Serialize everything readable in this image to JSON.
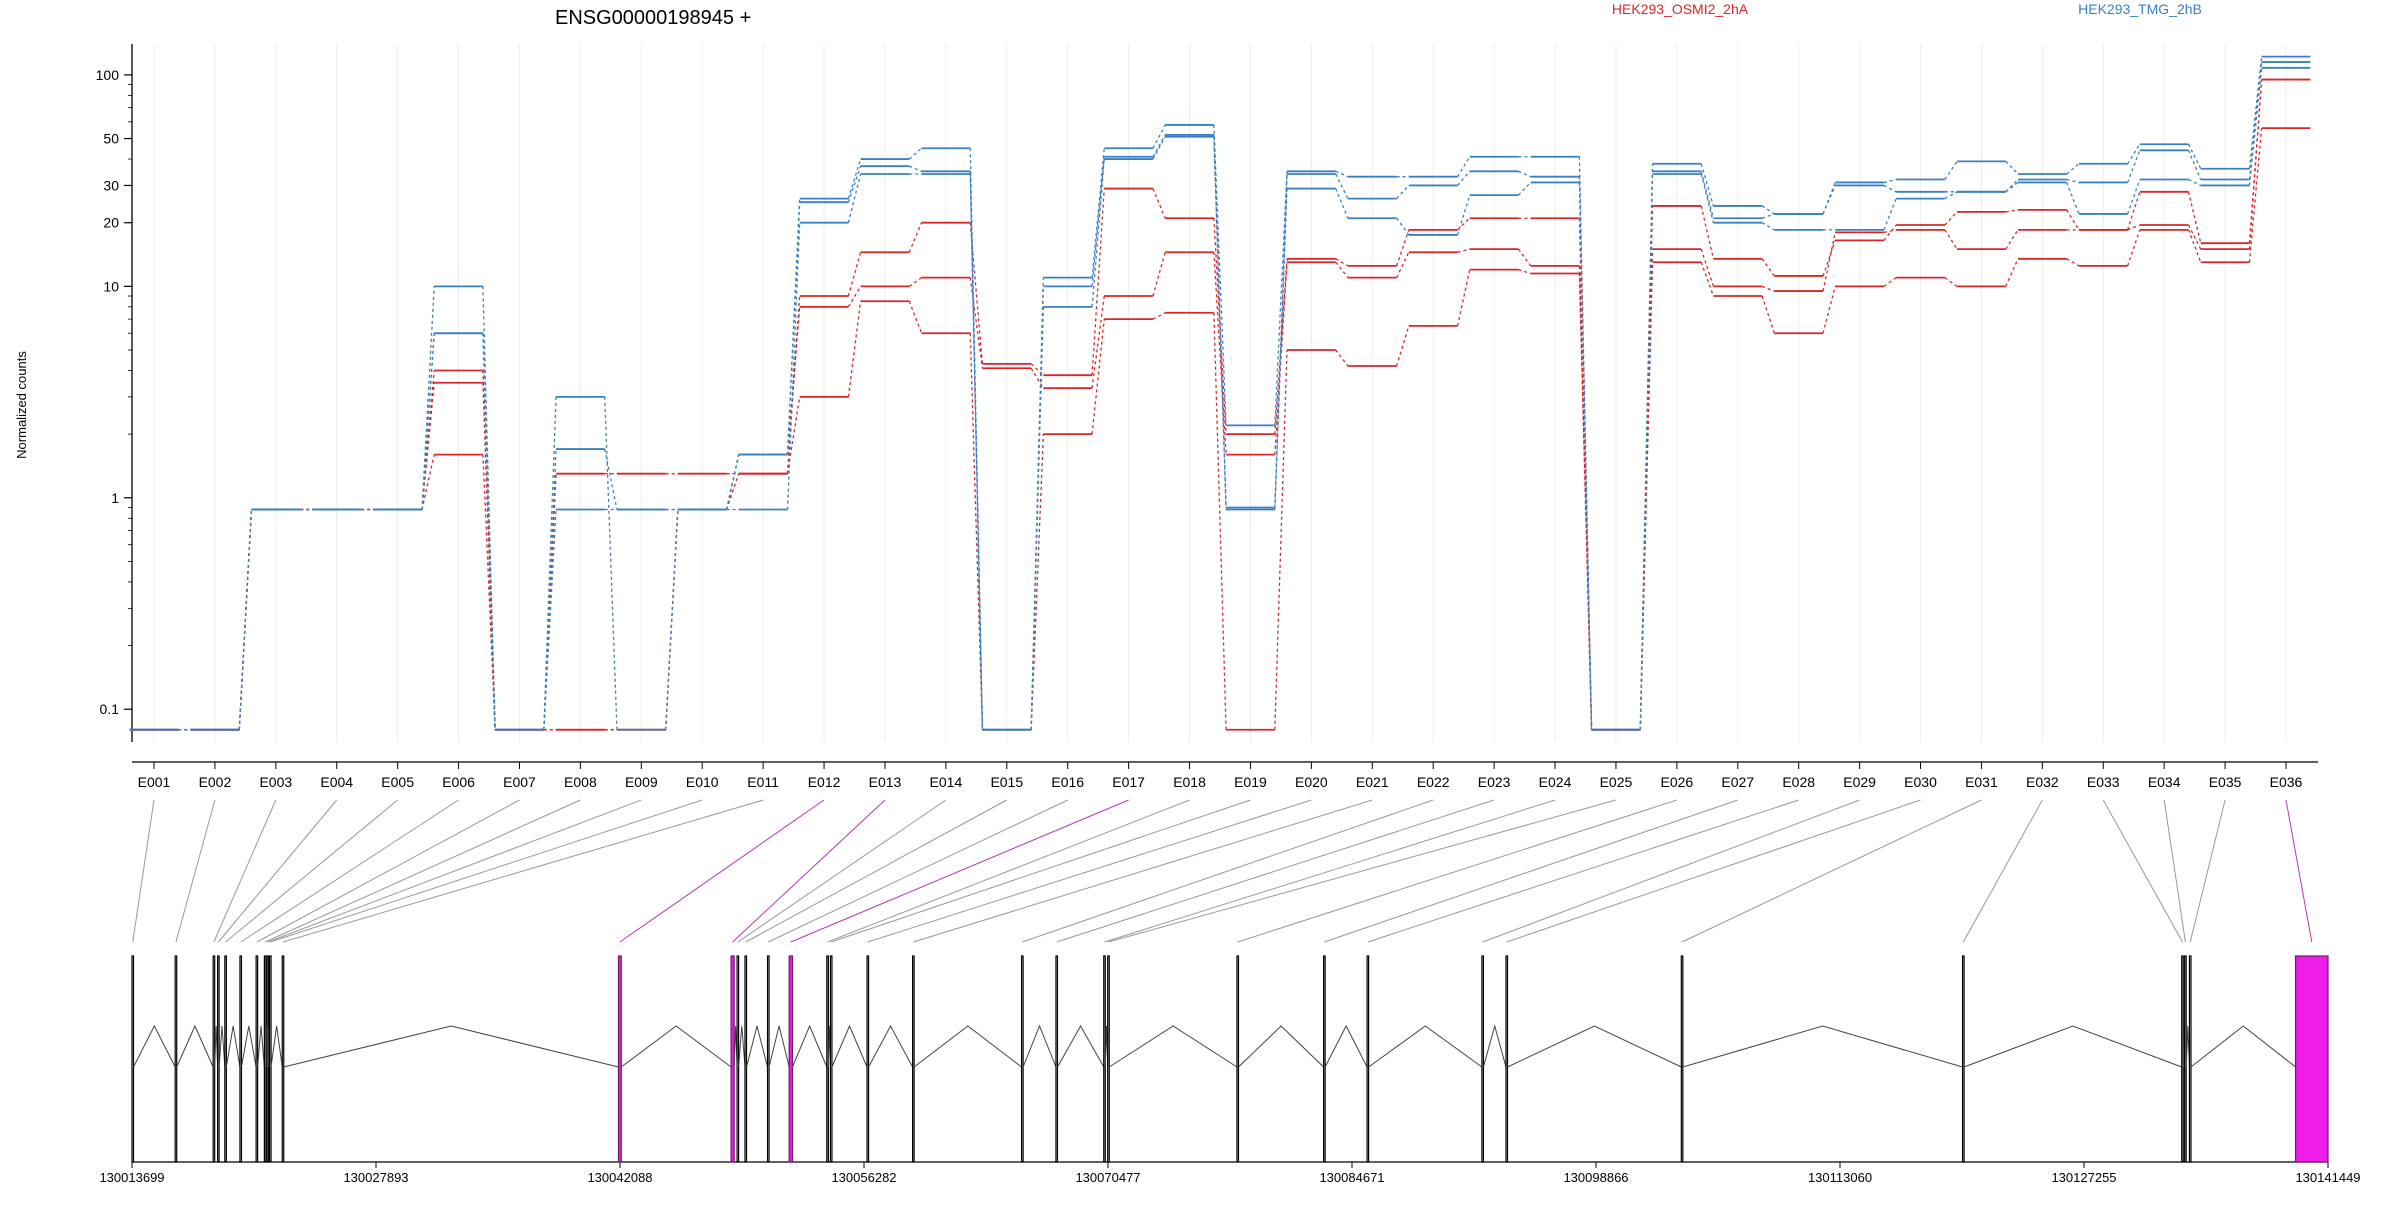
{
  "chart_data": {
    "type": "line",
    "title": "ENSG00000198945 +",
    "ylabel": "Normalized counts",
    "yscale": "log",
    "ylim": [
      0.07,
      140
    ],
    "yticks": [
      "0.1",
      "1",
      "10",
      "20",
      "30",
      "50",
      "100"
    ],
    "categories": [
      "E001",
      "E002",
      "E003",
      "E004",
      "E005",
      "E006",
      "E007",
      "E008",
      "E009",
      "E010",
      "E011",
      "E012",
      "E013",
      "E014",
      "E015",
      "E016",
      "E017",
      "E018",
      "E019",
      "E020",
      "E021",
      "E022",
      "E023",
      "E024",
      "E025",
      "E026",
      "E027",
      "E028",
      "E029",
      "E030",
      "E031",
      "E032",
      "E033",
      "E034",
      "E035",
      "E036"
    ],
    "conditions": [
      {
        "name": "HEK293_OSMI2_2hA",
        "color": "#d62728"
      },
      {
        "name": "HEK293_TMG_2hB",
        "color": "#3a7fc1"
      }
    ],
    "series": [
      {
        "condition": 0,
        "values": [
          0.08,
          0.08,
          0.88,
          0.88,
          0.88,
          4.0,
          0.08,
          1.3,
          1.3,
          1.3,
          1.3,
          9.0,
          14.5,
          20,
          4.3,
          3.8,
          29,
          21,
          2.0,
          13.5,
          12.5,
          18.5,
          21,
          21,
          0.08,
          24,
          13.5,
          11.2,
          16.5,
          19.5,
          22.5,
          23,
          18.5,
          28,
          16,
          95
        ]
      },
      {
        "condition": 0,
        "values": [
          0.08,
          0.08,
          0.88,
          0.88,
          0.88,
          3.5,
          0.08,
          0.08,
          0.08,
          0.88,
          1.6,
          8.0,
          10,
          11,
          4.1,
          3.3,
          9.0,
          14.5,
          1.6,
          13.0,
          11,
          14.5,
          15,
          12.5,
          0.08,
          15,
          10,
          9.5,
          18,
          18.5,
          15,
          18.5,
          18.5,
          19.5,
          15,
          95
        ]
      },
      {
        "condition": 0,
        "values": [
          0.08,
          0.08,
          0.88,
          0.88,
          0.88,
          1.6,
          0.08,
          0.08,
          0.08,
          0.88,
          1.3,
          3.0,
          8.5,
          6.0,
          0.08,
          2.0,
          7.0,
          7.5,
          0.08,
          5.0,
          4.2,
          6.5,
          12,
          11.5,
          0.08,
          13,
          9.0,
          6.0,
          10,
          11,
          10,
          13.5,
          12.5,
          18.5,
          13,
          56
        ]
      },
      {
        "condition": 1,
        "values": [
          0.08,
          0.08,
          0.88,
          0.88,
          0.88,
          10,
          0.08,
          3.0,
          0.08,
          0.88,
          1.6,
          26,
          40,
          45,
          0.08,
          11,
          45,
          58,
          2.2,
          35,
          33,
          33,
          41,
          41,
          0.08,
          38,
          24,
          22,
          31,
          32,
          39,
          34,
          38,
          47,
          36,
          122
        ]
      },
      {
        "condition": 1,
        "values": [
          0.08,
          0.08,
          0.88,
          0.88,
          0.88,
          6.0,
          0.08,
          1.7,
          0.88,
          0.88,
          1.6,
          25,
          37,
          35,
          0.08,
          10,
          41,
          52,
          0.9,
          34,
          26,
          30,
          35,
          33,
          0.08,
          35,
          21,
          22,
          30,
          28,
          28,
          32,
          31,
          44,
          32,
          115
        ]
      },
      {
        "condition": 1,
        "values": [
          0.08,
          0.08,
          0.88,
          0.88,
          0.88,
          6.0,
          0.08,
          0.88,
          0.88,
          0.88,
          0.88,
          20,
          34,
          34,
          0.08,
          8.0,
          40,
          51,
          0.88,
          29,
          21,
          17.5,
          27,
          31,
          0.08,
          34,
          20,
          18.5,
          18.5,
          26,
          28,
          31,
          22,
          32,
          30,
          108
        ]
      }
    ],
    "gene_model": {
      "xlim": [
        130013699,
        130141449
      ],
      "xticks": [
        "130013699",
        "130027893",
        "130042088",
        "130056282",
        "130070477",
        "130084671",
        "130098866",
        "130113060",
        "130127255",
        "130141449"
      ],
      "highlight_color": "#ee1ee8",
      "exons": [
        {
          "id": "E001",
          "start": 130013699,
          "end": 130013779
        },
        {
          "id": "E002",
          "start": 130016212,
          "end": 130016292
        },
        {
          "id": "E003",
          "start": 130018420,
          "end": 130018500
        },
        {
          "id": "E004",
          "start": 130018680,
          "end": 130018760
        },
        {
          "id": "E005",
          "start": 130019100,
          "end": 130019180
        },
        {
          "id": "E006",
          "start": 130019980,
          "end": 130020060
        },
        {
          "id": "E007",
          "start": 130020920,
          "end": 130021000
        },
        {
          "id": "E008",
          "start": 130021400,
          "end": 130021480
        },
        {
          "id": "E009",
          "start": 130021560,
          "end": 130021640
        },
        {
          "id": "E010",
          "start": 130021700,
          "end": 130021780
        },
        {
          "id": "E011",
          "start": 130022440,
          "end": 130022520
        },
        {
          "id": "E012",
          "start": 130042000,
          "end": 130042160,
          "highlight": true
        },
        {
          "id": "E013",
          "start": 130048550,
          "end": 130048730,
          "highlight": true
        },
        {
          "id": "E014",
          "start": 130048900,
          "end": 130048980
        },
        {
          "id": "E015",
          "start": 130049360,
          "end": 130049440
        },
        {
          "id": "E016",
          "start": 130050670,
          "end": 130050750
        },
        {
          "id": "E017",
          "start": 130051930,
          "end": 130052120,
          "highlight": true
        },
        {
          "id": "E018",
          "start": 130054120,
          "end": 130054200
        },
        {
          "id": "E019",
          "start": 130054330,
          "end": 130054410
        },
        {
          "id": "E020",
          "start": 130056460,
          "end": 130056540
        },
        {
          "id": "E021",
          "start": 130059110,
          "end": 130059190
        },
        {
          "id": "E022",
          "start": 130065450,
          "end": 130065530
        },
        {
          "id": "E023",
          "start": 130067450,
          "end": 130067530
        },
        {
          "id": "E024",
          "start": 130070230,
          "end": 130070310
        },
        {
          "id": "E025",
          "start": 130070460,
          "end": 130070540
        },
        {
          "id": "E026",
          "start": 130077980,
          "end": 130078060
        },
        {
          "id": "E027",
          "start": 130083020,
          "end": 130083100
        },
        {
          "id": "E028",
          "start": 130085550,
          "end": 130085630
        },
        {
          "id": "E029",
          "start": 130092230,
          "end": 130092310
        },
        {
          "id": "E030",
          "start": 130093630,
          "end": 130093710
        },
        {
          "id": "E031",
          "start": 130103830,
          "end": 130103910
        },
        {
          "id": "E032",
          "start": 130120190,
          "end": 130120270
        },
        {
          "id": "E033",
          "start": 130132940,
          "end": 130133020
        },
        {
          "id": "E034",
          "start": 130133110,
          "end": 130133190
        },
        {
          "id": "E035",
          "start": 130133390,
          "end": 130133470
        },
        {
          "id": "E036",
          "start": 130139560,
          "end": 130141449,
          "highlight": true
        }
      ]
    }
  }
}
